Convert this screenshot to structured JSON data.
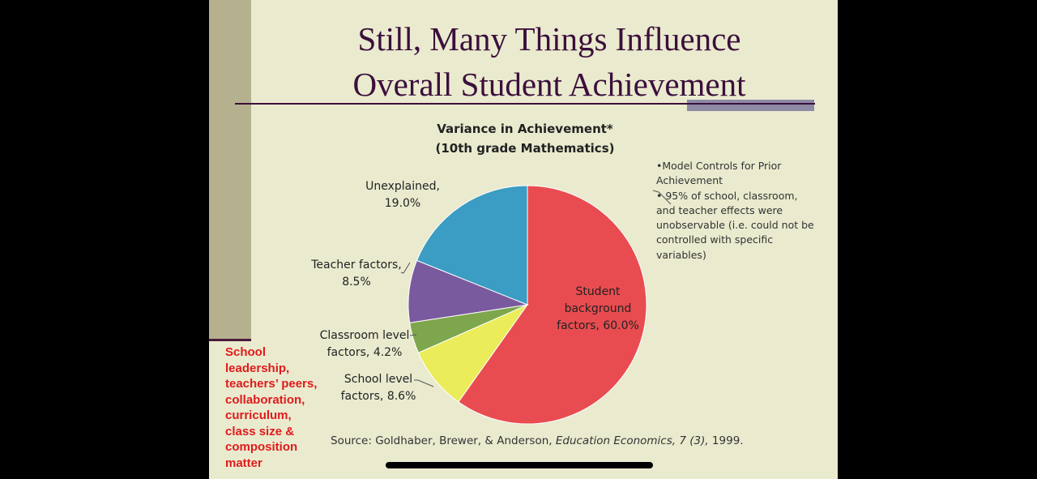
{
  "slide": {
    "title_line1": "Still, Many Things Influence",
    "title_line2": "Overall Student Achievement",
    "notes": [
      "•Model Controls for Prior Achievement",
      "• 95% of school, classroom, and teacher effects were unobservable (i.e. could not be controlled with specific variables)"
    ],
    "side_text_lines": [
      "School",
      "leadership,",
      "teachers’ peers,",
      "collaboration,",
      "curriculum,",
      "class size &",
      "composition",
      "matter"
    ],
    "source_plain": "Source: Goldhaber, Brewer, & Anderson,",
    "source_italic": "Education Economics, 7 (3),",
    "source_year": "1999.",
    "colors": {
      "title": "#3b0f3b",
      "background": "#eaeacf",
      "side_text": "#e01b1b"
    }
  },
  "chart_data": {
    "type": "pie",
    "title_line1": "Variance in Achievement*",
    "title_line2": "(10th grade Mathematics)",
    "slices": [
      {
        "name": "Student background factors",
        "value": 60.0,
        "color": "#e84c50",
        "label_lines": [
          "Student",
          "background",
          "factors, 60.0%"
        ]
      },
      {
        "name": "School level factors",
        "value": 8.6,
        "color": "#eaec5a",
        "label_lines": [
          "School level",
          "factors, 8.6%"
        ]
      },
      {
        "name": "Classroom level factors",
        "value": 4.2,
        "color": "#7ea64c",
        "label_lines": [
          "Classroom level",
          "factors, 4.2%"
        ]
      },
      {
        "name": "Teacher factors",
        "value": 8.5,
        "color": "#7a5a9e",
        "label_lines": [
          "Teacher factors,",
          "8.5%"
        ]
      },
      {
        "name": "Unexplained",
        "value": 19.0,
        "color": "#3b9cc4",
        "label_lines": [
          "Unexplained,",
          "19.0%"
        ]
      }
    ],
    "start": "12 o'clock",
    "direction": "clockwise"
  }
}
